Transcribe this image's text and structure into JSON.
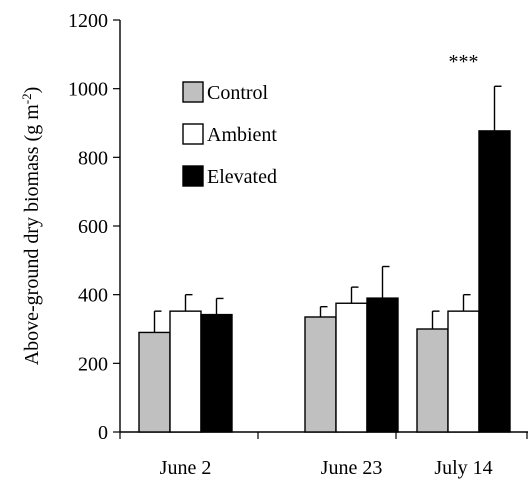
{
  "chart_data": {
    "type": "bar",
    "title": "",
    "xlabel": "",
    "ylabel": "Above-ground dry biomass (g m",
    "ylabel_sup": "-2",
    "ylabel_close": ")",
    "ylim": [
      0,
      1200
    ],
    "yticks": [
      0,
      200,
      400,
      600,
      800,
      1000,
      1200
    ],
    "categories": [
      "June 2",
      "June 23",
      "July 14"
    ],
    "series": [
      {
        "name": "Control",
        "color": "#c0c0c0",
        "values": [
          290,
          335,
          300
        ],
        "errors": [
          62,
          30,
          52
        ]
      },
      {
        "name": "Ambient",
        "color": "#ffffff",
        "values": [
          352,
          375,
          352
        ],
        "errors": [
          48,
          47,
          48
        ]
      },
      {
        "name": "Elevated",
        "color": "#000000",
        "values": [
          342,
          390,
          877
        ],
        "errors": [
          47,
          92,
          130
        ]
      }
    ],
    "annotations": [
      {
        "text": "***",
        "category": "July 14",
        "value": 1060
      }
    ],
    "legend_position": "top-left",
    "grid": false
  }
}
